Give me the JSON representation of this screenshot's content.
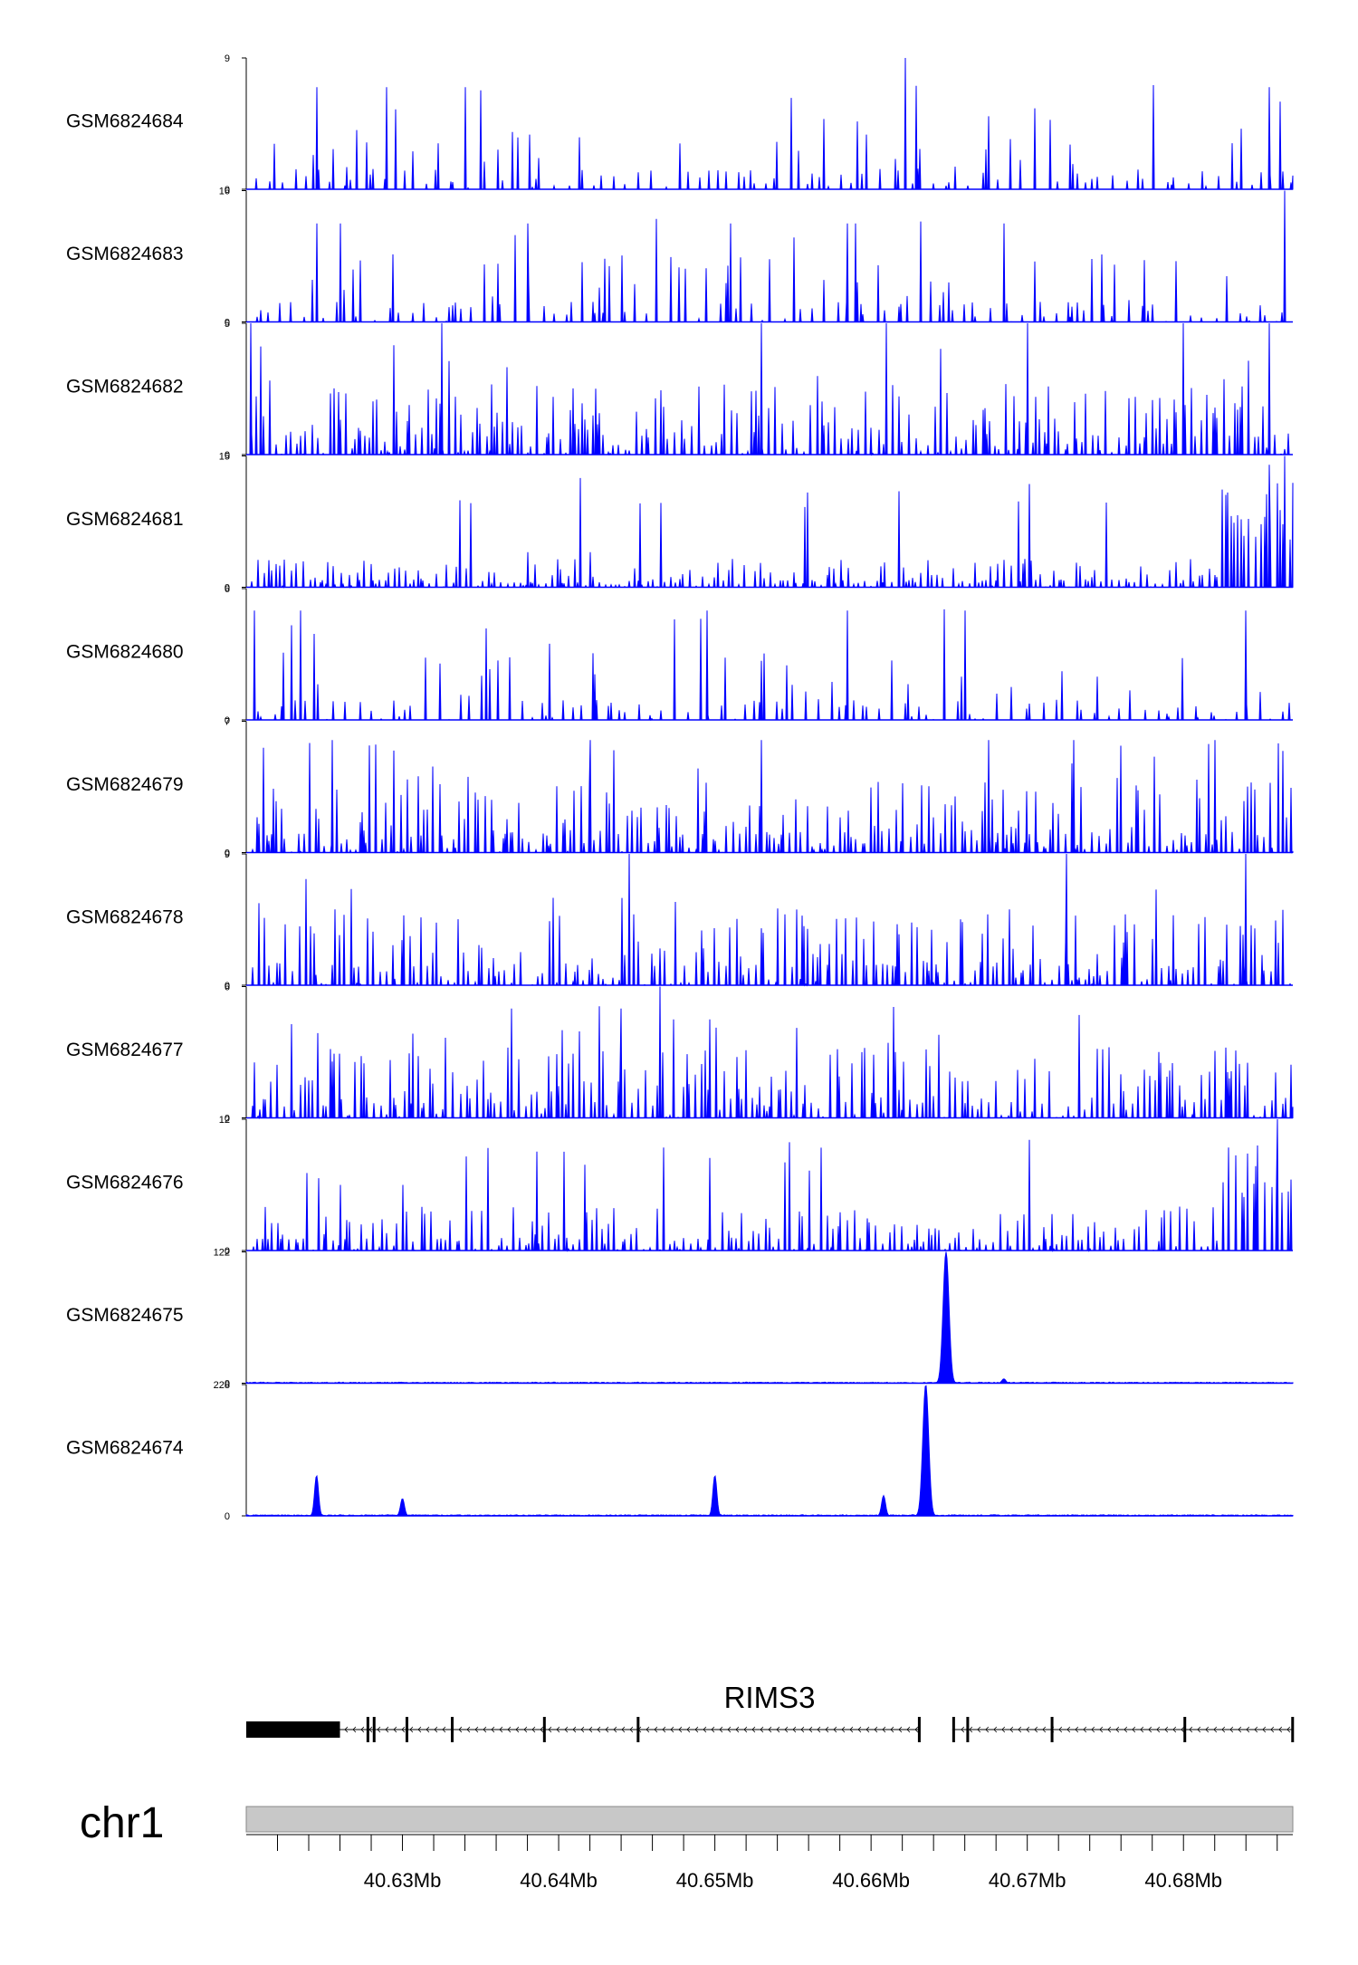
{
  "colors": {
    "signal": "#0000ff",
    "gene": "#000000",
    "ideogram_fill": "#c8c8c8",
    "ideogram_stroke": "#888888"
  },
  "chart_data": {
    "type": "area",
    "chromosome": "chr1",
    "x_range_bp": [
      40620000,
      40687000
    ],
    "tracks": [
      {
        "name": "GSM6824684",
        "ymax": 9,
        "ymin": 0,
        "style": "sparse",
        "peaks": [
          [
            40624500,
            7
          ],
          [
            40629000,
            7
          ],
          [
            40634000,
            7
          ],
          [
            40662200,
            9
          ],
          [
            40667500,
            5
          ],
          [
            40685500,
            7
          ],
          [
            40686200,
            6
          ]
        ]
      },
      {
        "name": "GSM6824683",
        "ymax": 16,
        "ymin": 0,
        "style": "sparse",
        "peaks": [
          [
            40624500,
            12
          ],
          [
            40626000,
            12
          ],
          [
            40638000,
            12
          ],
          [
            40651000,
            12
          ],
          [
            40658500,
            12
          ],
          [
            40659000,
            12
          ],
          [
            40668500,
            12
          ],
          [
            40686500,
            16
          ]
        ]
      },
      {
        "name": "GSM6824682",
        "ymax": 5,
        "ymin": 0,
        "style": "dense",
        "peaks": [
          [
            40620300,
            5
          ],
          [
            40632500,
            5
          ],
          [
            40653000,
            5
          ],
          [
            40661000,
            5
          ],
          [
            40670000,
            5
          ],
          [
            40680000,
            5
          ],
          [
            40685500,
            5
          ]
        ]
      },
      {
        "name": "GSM6824681",
        "ymax": 15,
        "ymin": 0,
        "style": "low",
        "peaks": [
          [
            40638000,
            4
          ],
          [
            40642000,
            4
          ],
          [
            40685500,
            14
          ],
          [
            40686500,
            15
          ]
        ]
      },
      {
        "name": "GSM6824680",
        "ymax": 6,
        "ymin": 0,
        "style": "sparse",
        "peaks": [
          [
            40620500,
            5
          ],
          [
            40623500,
            5
          ],
          [
            40649500,
            5
          ],
          [
            40658500,
            5
          ],
          [
            40666000,
            5
          ],
          [
            40684000,
            5
          ]
        ]
      },
      {
        "name": "GSM6824679",
        "ymax": 7,
        "ymin": 0,
        "style": "dense",
        "peaks": [
          [
            40625500,
            6
          ],
          [
            40642000,
            6
          ],
          [
            40653000,
            6
          ],
          [
            40667500,
            6
          ],
          [
            40673000,
            6
          ],
          [
            40682000,
            6
          ]
        ]
      },
      {
        "name": "GSM6824678",
        "ymax": 9,
        "ymin": 0,
        "style": "dense",
        "peaks": [
          [
            40644500,
            9
          ],
          [
            40672500,
            9
          ],
          [
            40684000,
            9
          ]
        ]
      },
      {
        "name": "GSM6824677",
        "ymax": 6,
        "ymin": 0,
        "style": "dense",
        "peaks": [
          [
            40646500,
            6
          ],
          [
            40644000,
            5
          ],
          [
            40637000,
            5
          ]
        ]
      },
      {
        "name": "GSM6824676",
        "ymax": 12,
        "ymin": 0,
        "style": "ramp",
        "peaks": [
          [
            40626000,
            6
          ],
          [
            40630000,
            6
          ],
          [
            40686000,
            12
          ]
        ]
      },
      {
        "name": "GSM6824675",
        "ymax": 122,
        "ymin": 0,
        "style": "flat",
        "peaks": [
          [
            40664800,
            122
          ],
          [
            40668500,
            4
          ]
        ]
      },
      {
        "name": "GSM6824674",
        "ymax": 228,
        "ymin": 0,
        "style": "flat",
        "peaks": [
          [
            40624500,
            70
          ],
          [
            40630000,
            30
          ],
          [
            40650000,
            70
          ],
          [
            40660800,
            35
          ],
          [
            40663500,
            228
          ]
        ]
      }
    ],
    "gene": {
      "name": "RIMS3",
      "exons_bp": [
        [
          40620000,
          40626000
        ],
        [
          40627700,
          40627850
        ],
        [
          40628100,
          40628200
        ],
        [
          40630200,
          40630300
        ],
        [
          40633100,
          40633200
        ],
        [
          40639000,
          40639150
        ],
        [
          40645000,
          40645100
        ],
        [
          40663000,
          40663150
        ],
        [
          40665200,
          40665300
        ],
        [
          40666100,
          40666200
        ],
        [
          40671500,
          40671600
        ],
        [
          40680000,
          40680100
        ],
        [
          40686900,
          40687000
        ]
      ],
      "segments_bp": [
        [
          40620000,
          40663150
        ],
        [
          40665200,
          40687000
        ]
      ]
    },
    "x_ticks": [
      {
        "pos": 40630000,
        "label": "40.63Mb"
      },
      {
        "pos": 40640000,
        "label": "40.64Mb"
      },
      {
        "pos": 40650000,
        "label": "40.65Mb"
      },
      {
        "pos": 40660000,
        "label": "40.66Mb"
      },
      {
        "pos": 40670000,
        "label": "40.67Mb"
      },
      {
        "pos": 40680000,
        "label": "40.68Mb"
      }
    ],
    "minor_tick_step_bp": 2000
  }
}
